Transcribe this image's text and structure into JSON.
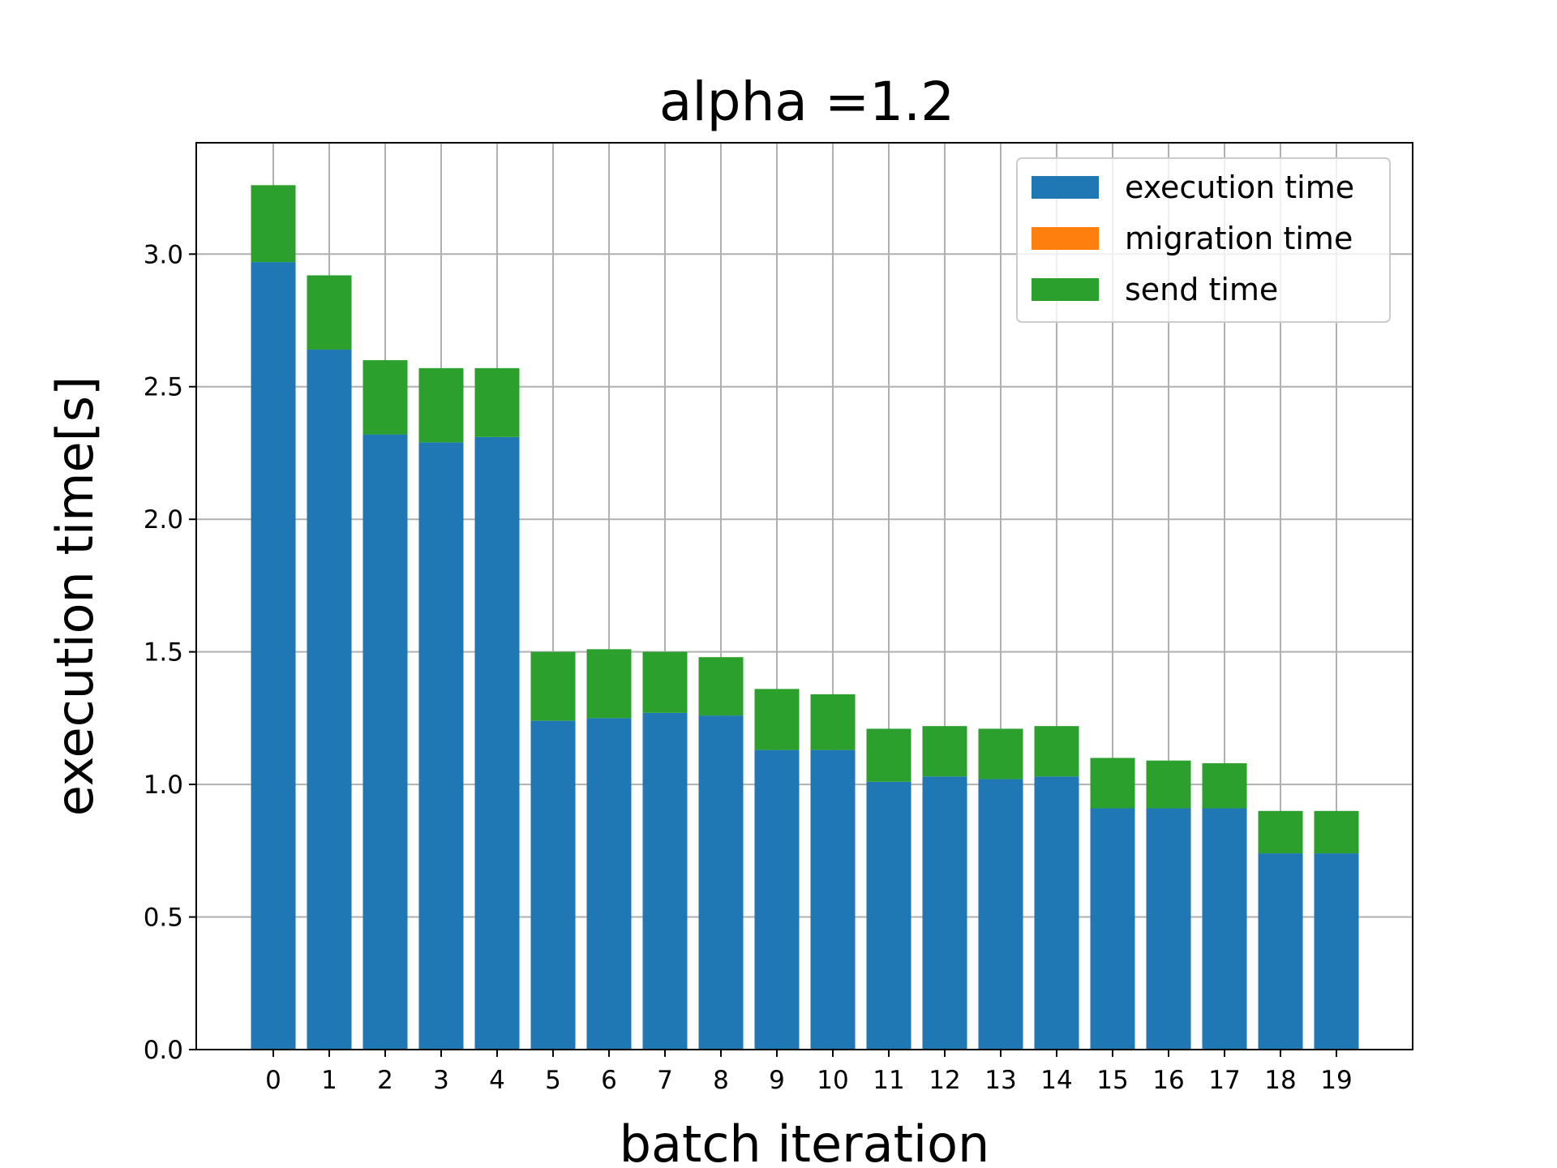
{
  "chart_data": {
    "type": "bar",
    "stacked": true,
    "title": "alpha =1.2",
    "xlabel": "batch iteration",
    "ylabel": "execution time[s]",
    "categories": [
      "0",
      "1",
      "2",
      "3",
      "4",
      "5",
      "6",
      "7",
      "8",
      "9",
      "10",
      "11",
      "12",
      "13",
      "14",
      "15",
      "16",
      "17",
      "18",
      "19"
    ],
    "ylim": [
      0,
      3.42
    ],
    "yticks": [
      "0.0",
      "0.5",
      "1.0",
      "1.5",
      "2.0",
      "2.5",
      "3.0"
    ],
    "grid": true,
    "legend_position": "top-right",
    "series": [
      {
        "name": "execution time",
        "color": "#1f77b4",
        "values": [
          2.97,
          2.64,
          2.32,
          2.29,
          2.31,
          1.24,
          1.25,
          1.27,
          1.26,
          1.13,
          1.13,
          1.01,
          1.03,
          1.02,
          1.03,
          0.91,
          0.91,
          0.91,
          0.74,
          0.74
        ]
      },
      {
        "name": "migration time",
        "color": "#ff7f0e",
        "values": [
          0,
          0,
          0,
          0,
          0,
          0,
          0,
          0,
          0,
          0,
          0,
          0,
          0,
          0,
          0,
          0,
          0,
          0,
          0,
          0
        ]
      },
      {
        "name": "send time",
        "color": "#2ca02c",
        "values": [
          0.29,
          0.28,
          0.28,
          0.28,
          0.26,
          0.26,
          0.26,
          0.23,
          0.22,
          0.23,
          0.21,
          0.2,
          0.19,
          0.19,
          0.19,
          0.19,
          0.18,
          0.17,
          0.16,
          0.16
        ]
      }
    ]
  }
}
